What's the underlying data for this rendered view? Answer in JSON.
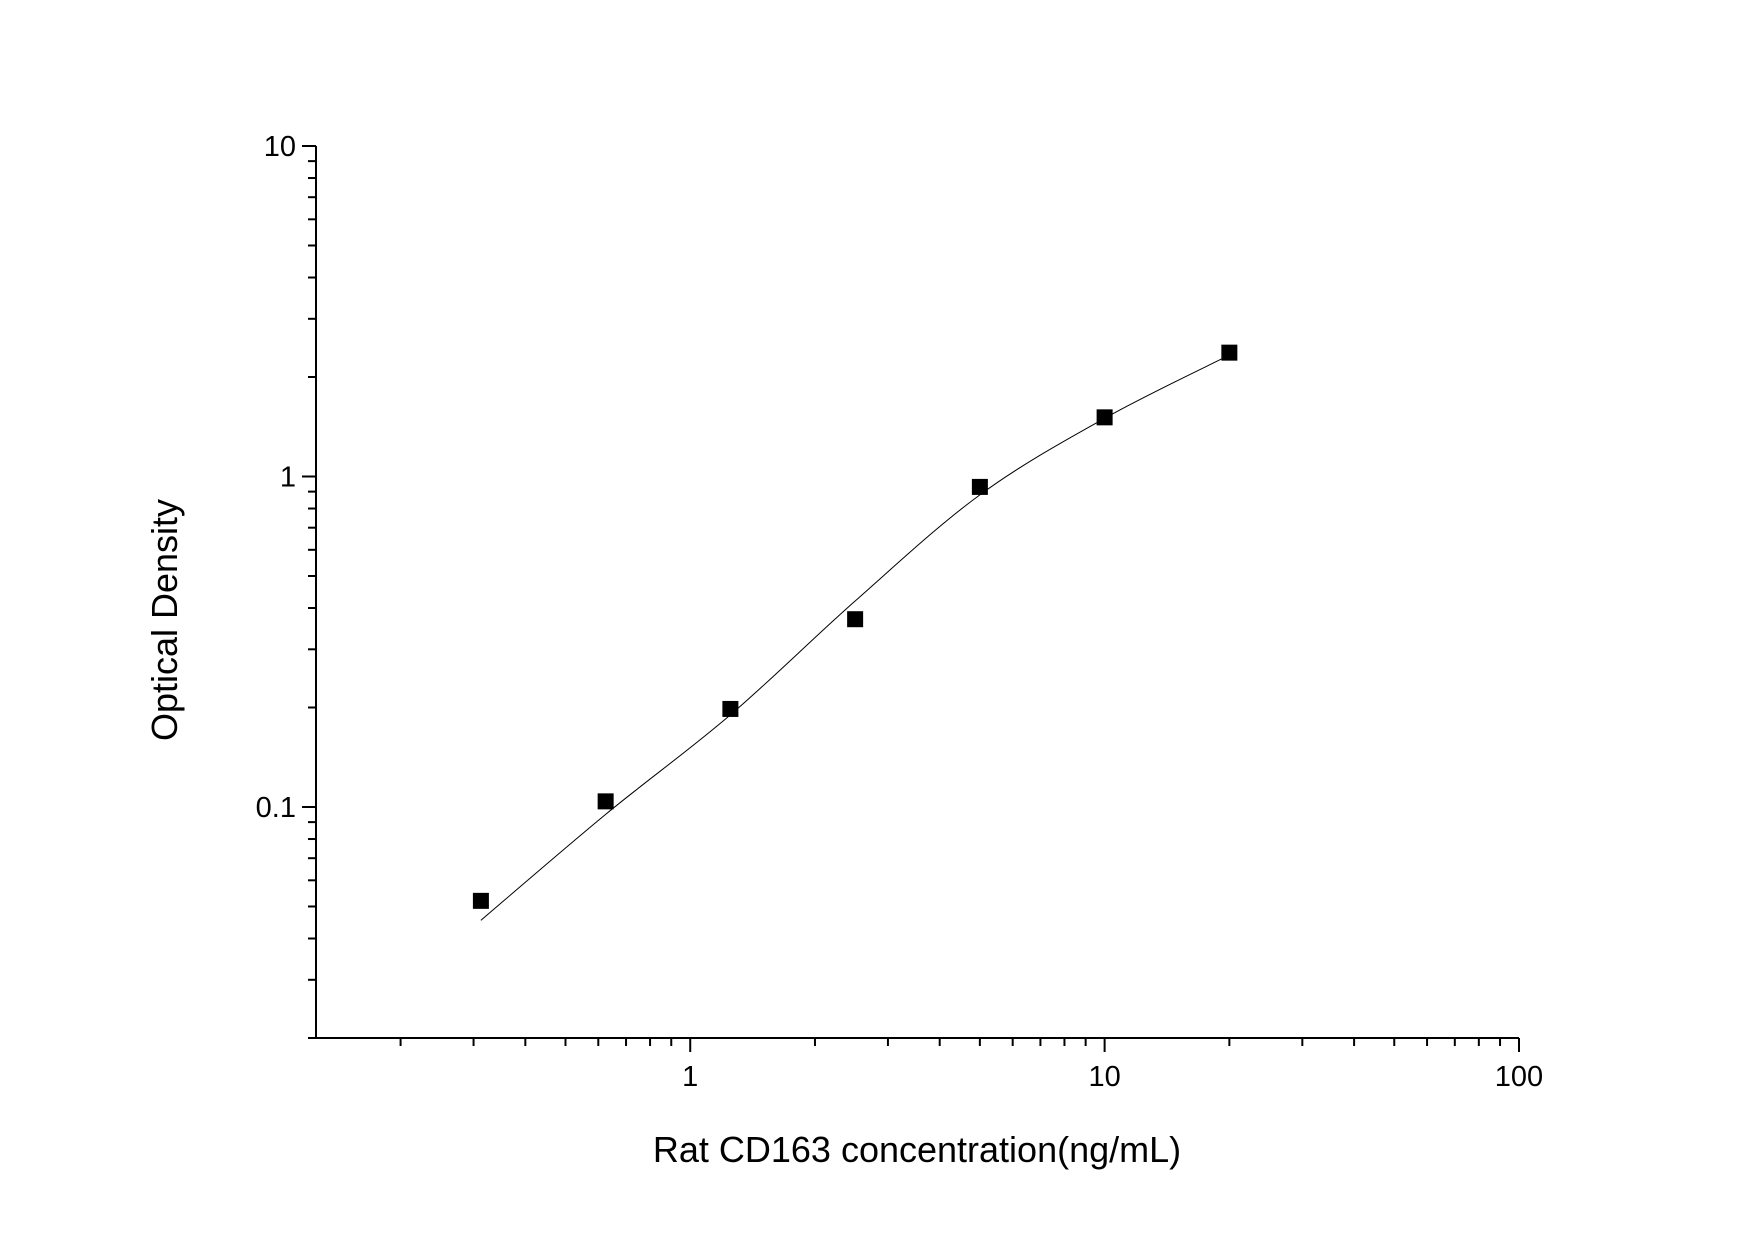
{
  "chart_data": {
    "type": "scatter",
    "title": "",
    "xlabel": "Rat CD163 concentration(ng/mL)",
    "ylabel": "Optical Density",
    "x_scale": "log",
    "y_scale": "log",
    "xlim": [
      0.125,
      100
    ],
    "ylim": [
      0.02,
      10
    ],
    "x_ticks": [
      {
        "value": 1,
        "label": "1"
      },
      {
        "value": 10,
        "label": "10"
      },
      {
        "value": 100,
        "label": "100"
      }
    ],
    "y_ticks": [
      {
        "value": 0.1,
        "label": "0.1"
      },
      {
        "value": 1,
        "label": "1"
      },
      {
        "value": 10,
        "label": "10"
      }
    ],
    "grid": false,
    "marker_color": "#000000",
    "points": {
      "x": [
        0.3125,
        0.625,
        1.25,
        2.5,
        5,
        10,
        20
      ],
      "y": [
        0.052,
        0.104,
        0.198,
        0.37,
        0.93,
        1.51,
        2.37
      ]
    },
    "fit_curve": {
      "x": [
        0.3125,
        0.625,
        1.25,
        2.5,
        5,
        10,
        20
      ],
      "y": [
        0.0454,
        0.095,
        0.19,
        0.42,
        0.88,
        1.5,
        2.33
      ]
    }
  }
}
